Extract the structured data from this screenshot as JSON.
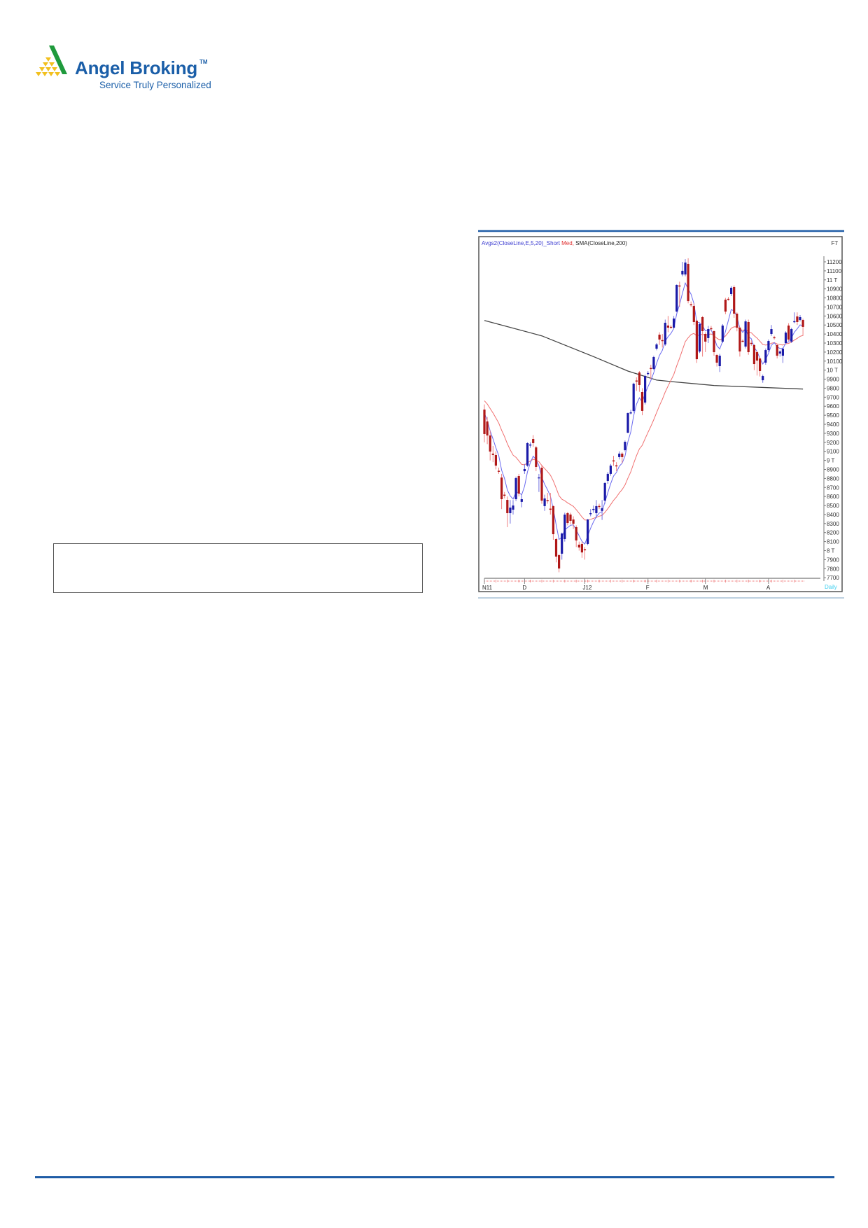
{
  "brand": {
    "name": "Angel Broking",
    "trademark": "TM",
    "tagline": "Service Truly Personalized",
    "colors": {
      "primary": "#1a5ea8",
      "green": "#1f9a3c",
      "yellow": "#f2c01e"
    }
  },
  "note_box": {
    "text": ""
  },
  "chart_data": {
    "type": "candlestick",
    "legend": {
      "part1": "Avgs2(CloseLine,E,5,20)_Short",
      "part2": " Med,",
      "part3": " SMA(CloseLine,200)"
    },
    "corner_label": "F7",
    "period_label": "Daily",
    "colors": {
      "up": "#1a1aa8",
      "down": "#b01818",
      "ema_short": "#6a6af0",
      "ema_med": "#f07070",
      "sma200": "#444444",
      "period": "#40d0f0"
    },
    "ylim": [
      7700,
      11200
    ],
    "y_ticks": [
      {
        "value": 11200,
        "label": "11200"
      },
      {
        "value": 11100,
        "label": "11100"
      },
      {
        "value": 11000,
        "label": "11 T"
      },
      {
        "value": 10900,
        "label": "10900"
      },
      {
        "value": 10800,
        "label": "10800"
      },
      {
        "value": 10700,
        "label": "10700"
      },
      {
        "value": 10600,
        "label": "10600"
      },
      {
        "value": 10500,
        "label": "10500"
      },
      {
        "value": 10400,
        "label": "10400"
      },
      {
        "value": 10300,
        "label": "10300"
      },
      {
        "value": 10200,
        "label": "10200"
      },
      {
        "value": 10100,
        "label": "10100"
      },
      {
        "value": 10000,
        "label": "10 T"
      },
      {
        "value": 9900,
        "label": "9900"
      },
      {
        "value": 9800,
        "label": "9800"
      },
      {
        "value": 9700,
        "label": "9700"
      },
      {
        "value": 9600,
        "label": "9600"
      },
      {
        "value": 9500,
        "label": "9500"
      },
      {
        "value": 9400,
        "label": "9400"
      },
      {
        "value": 9300,
        "label": "9300"
      },
      {
        "value": 9200,
        "label": "9200"
      },
      {
        "value": 9100,
        "label": "9100"
      },
      {
        "value": 9000,
        "label": "9 T"
      },
      {
        "value": 8900,
        "label": "8900"
      },
      {
        "value": 8800,
        "label": "8800"
      },
      {
        "value": 8700,
        "label": "8700"
      },
      {
        "value": 8600,
        "label": "8600"
      },
      {
        "value": 8500,
        "label": "8500"
      },
      {
        "value": 8400,
        "label": "8400"
      },
      {
        "value": 8300,
        "label": "8300"
      },
      {
        "value": 8200,
        "label": "8200"
      },
      {
        "value": 8100,
        "label": "8100"
      },
      {
        "value": 8000,
        "label": "8 T"
      },
      {
        "value": 7900,
        "label": "7900"
      },
      {
        "value": 7800,
        "label": "7800"
      },
      {
        "value": 7700,
        "label": "7700"
      }
    ],
    "x_labels": [
      {
        "label": "N11",
        "index": 0
      },
      {
        "label": "D",
        "index": 14
      },
      {
        "label": "J12",
        "index": 35
      },
      {
        "label": "F",
        "index": 57
      },
      {
        "label": "M",
        "index": 77
      },
      {
        "label": "A",
        "index": 99
      }
    ],
    "candles_ohlc": [
      [
        9563,
        9620,
        9200,
        9292
      ],
      [
        9431,
        9480,
        9180,
        9276
      ],
      [
        9276,
        9330,
        9000,
        9098
      ],
      [
        9075,
        9160,
        8980,
        9060
      ],
      [
        9059,
        9100,
        8900,
        8942
      ],
      [
        8885,
        8920,
        8850,
        8880
      ],
      [
        8810,
        8850,
        8460,
        8570
      ],
      [
        8620,
        8650,
        8580,
        8617
      ],
      [
        8562,
        8600,
        8260,
        8415
      ],
      [
        8415,
        8560,
        8300,
        8477
      ],
      [
        8454,
        8560,
        8400,
        8500
      ],
      [
        8570,
        8820,
        8550,
        8803
      ],
      [
        8826,
        8850,
        8600,
        8632
      ],
      [
        8540,
        8630,
        8480,
        8570
      ],
      [
        8880,
        8960,
        8850,
        8904
      ],
      [
        8942,
        9200,
        8930,
        9191
      ],
      [
        9170,
        9200,
        9140,
        9176
      ],
      [
        9237,
        9280,
        9150,
        9191
      ],
      [
        9144,
        9160,
        8880,
        8927
      ],
      [
        8810,
        8850,
        8650,
        8812
      ],
      [
        8919,
        8950,
        8520,
        8554
      ],
      [
        8493,
        8620,
        8440,
        8578
      ],
      [
        8560,
        8640,
        8520,
        8554
      ],
      [
        8465,
        8640,
        8400,
        8462
      ],
      [
        8493,
        8500,
        8120,
        8182
      ],
      [
        8128,
        8140,
        7870,
        7934
      ],
      [
        7950,
        7960,
        7760,
        7802
      ],
      [
        7966,
        8200,
        7900,
        8190
      ],
      [
        8128,
        8420,
        8100,
        8399
      ],
      [
        8415,
        8430,
        8280,
        8306
      ],
      [
        8400,
        8420,
        8290,
        8330
      ],
      [
        8345,
        8380,
        8240,
        8298
      ],
      [
        8260,
        8280,
        8040,
        8113
      ],
      [
        8066,
        8100,
        8000,
        8035
      ],
      [
        8074,
        8100,
        7920,
        7980
      ],
      [
        8015,
        8040,
        7900,
        8012
      ],
      [
        8074,
        8350,
        8060,
        8345
      ],
      [
        8410,
        8460,
        8380,
        8415
      ],
      [
        8455,
        8500,
        8420,
        8462
      ],
      [
        8415,
        8560,
        8360,
        8493
      ],
      [
        8495,
        8520,
        8460,
        8490
      ],
      [
        8440,
        8560,
        8340,
        8470
      ],
      [
        8554,
        8760,
        8520,
        8749
      ],
      [
        8772,
        8870,
        8740,
        8850
      ],
      [
        8850,
        8960,
        8830,
        8942
      ],
      [
        9000,
        9050,
        8940,
        8997
      ],
      [
        8945,
        8980,
        8880,
        8942
      ],
      [
        9036,
        9100,
        9010,
        9075
      ],
      [
        9075,
        9090,
        8970,
        9036
      ],
      [
        9113,
        9220,
        9100,
        9206
      ],
      [
        9307,
        9530,
        9300,
        9524
      ],
      [
        9530,
        9560,
        9510,
        9532
      ],
      [
        9548,
        9860,
        9530,
        9850
      ],
      [
        9885,
        9920,
        9770,
        9881
      ],
      [
        9974,
        9990,
        9760,
        9835
      ],
      [
        9757,
        9800,
        9500,
        9548
      ],
      [
        9641,
        9950,
        9620,
        9935
      ],
      [
        9966,
        9990,
        9940,
        9968
      ],
      [
        10024,
        10060,
        9900,
        10020
      ],
      [
        10013,
        10160,
        10000,
        10145
      ],
      [
        10238,
        10300,
        10220,
        10285
      ],
      [
        10393,
        10420,
        10280,
        10339
      ],
      [
        10333,
        10400,
        10250,
        10331
      ],
      [
        10285,
        10560,
        10270,
        10525
      ],
      [
        10494,
        10600,
        10420,
        10471
      ],
      [
        10480,
        10500,
        10460,
        10479
      ],
      [
        10471,
        10600,
        10460,
        10572
      ],
      [
        10650,
        10950,
        10640,
        10944
      ],
      [
        10938,
        10980,
        10700,
        10936
      ],
      [
        11060,
        11200,
        11040,
        11100
      ],
      [
        11060,
        11230,
        11040,
        11192
      ],
      [
        11177,
        11240,
        10740,
        10765
      ],
      [
        10730,
        10760,
        10700,
        10727
      ],
      [
        10711,
        10740,
        10500,
        10533
      ],
      [
        10548,
        10560,
        10080,
        10121
      ],
      [
        10206,
        10520,
        10190,
        10509
      ],
      [
        10587,
        10600,
        10150,
        10432
      ],
      [
        10401,
        10420,
        10200,
        10316
      ],
      [
        10355,
        10490,
        10300,
        10455
      ],
      [
        10465,
        10490,
        10440,
        10463
      ],
      [
        10432,
        10440,
        10160,
        10199
      ],
      [
        10168,
        10180,
        10040,
        10083
      ],
      [
        10044,
        10180,
        9980,
        10160
      ],
      [
        10316,
        10510,
        10300,
        10494
      ],
      [
        10781,
        10800,
        10620,
        10649
      ],
      [
        10790,
        10810,
        10770,
        10789
      ],
      [
        10843,
        10930,
        10820,
        10913
      ],
      [
        10921,
        10940,
        10580,
        10626
      ],
      [
        10626,
        10640,
        10430,
        10471
      ],
      [
        10471,
        10480,
        10150,
        10207
      ],
      [
        10325,
        10340,
        10310,
        10323
      ],
      [
        10261,
        10560,
        10240,
        10540
      ],
      [
        10533,
        10560,
        10170,
        10199
      ],
      [
        10302,
        10330,
        10270,
        10300
      ],
      [
        10277,
        10290,
        10000,
        10067
      ],
      [
        10199,
        10210,
        9940,
        10106
      ],
      [
        10129,
        10140,
        9930,
        9990
      ],
      [
        9888,
        9950,
        9860,
        9935
      ],
      [
        10083,
        10240,
        10060,
        10222
      ],
      [
        10222,
        10340,
        10200,
        10323
      ],
      [
        10401,
        10500,
        10380,
        10455
      ],
      [
        10365,
        10380,
        10340,
        10362
      ],
      [
        10277,
        10290,
        10130,
        10160
      ],
      [
        10184,
        10220,
        10150,
        10207
      ],
      [
        10160,
        10250,
        10080,
        10238
      ],
      [
        10300,
        10430,
        10290,
        10416
      ],
      [
        10494,
        10520,
        10320,
        10339
      ],
      [
        10316,
        10470,
        10300,
        10455
      ],
      [
        10541,
        10640,
        10520,
        10543
      ],
      [
        10595,
        10640,
        10500,
        10533
      ],
      [
        10556,
        10610,
        10540,
        10587
      ],
      [
        10556,
        10570,
        10380,
        10479
      ]
    ],
    "sma200": [
      {
        "index": 0,
        "value": 10550
      },
      {
        "index": 20,
        "value": 10380
      },
      {
        "index": 38,
        "value": 10150
      },
      {
        "index": 50,
        "value": 9990
      },
      {
        "index": 60,
        "value": 9890
      },
      {
        "index": 66,
        "value": 9870
      },
      {
        "index": 80,
        "value": 9830
      },
      {
        "index": 111,
        "value": 9790
      }
    ]
  }
}
